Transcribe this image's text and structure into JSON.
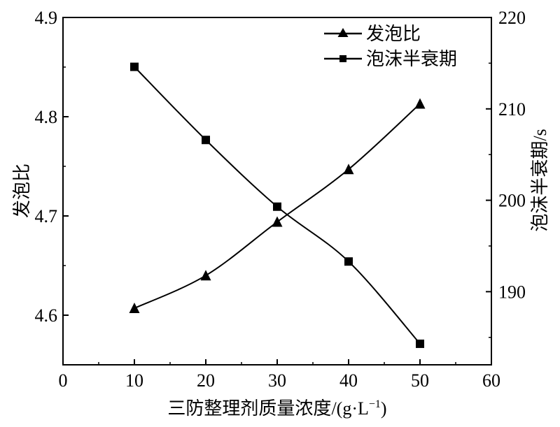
{
  "chart_data": {
    "type": "line",
    "x": [
      10,
      20,
      30,
      40,
      50
    ],
    "xlim": [
      0,
      60
    ],
    "xticks": [
      0,
      10,
      20,
      30,
      40,
      50,
      60
    ],
    "xlabel": "三防整理剂质量浓度/(g·L⁻¹)",
    "xlabel_main": "三防整理剂质量浓度",
    "xlabel_unit": "/(g·L",
    "xlabel_exp": "−1",
    "xlabel_close": ")",
    "y_left": {
      "label": "发泡比",
      "lim": [
        4.55,
        4.9
      ],
      "ticks": [
        "4.6",
        "4.7",
        "4.8",
        "4.9"
      ]
    },
    "y_right": {
      "label": "泡沫半衰期/s",
      "label_main": "泡沫半衰期",
      "label_unit": "/s",
      "lim": [
        182,
        220
      ],
      "ticks": [
        "190",
        "200",
        "210",
        "220"
      ]
    },
    "series": [
      {
        "name": "发泡比",
        "axis": "left",
        "marker": "triangle",
        "values": [
          4.607,
          4.64,
          4.694,
          4.747,
          4.813
        ]
      },
      {
        "name": "泡沫半衰期",
        "axis": "right",
        "marker": "square",
        "values": [
          214.6,
          206.6,
          199.3,
          193.3,
          184.3
        ]
      }
    ],
    "legend_position": "top-right",
    "grid": false,
    "colors": {
      "line": "#000000",
      "background": "#ffffff"
    }
  }
}
